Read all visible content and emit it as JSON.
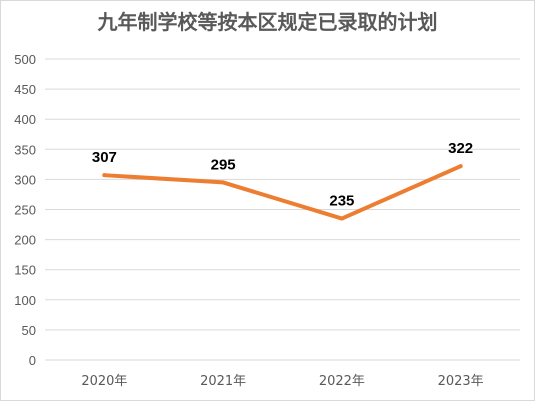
{
  "chart_data": {
    "type": "line",
    "title": "九年制学校等按本区规定已录取的计划",
    "categories": [
      "2020年",
      "2021年",
      "2022年",
      "2023年"
    ],
    "series": [
      {
        "values": [
          307,
          295,
          235,
          322
        ],
        "color": "#ED7D31"
      }
    ],
    "data_labels": [
      "307",
      "295",
      "235",
      "322"
    ],
    "ylim": [
      0,
      500
    ],
    "yticks": [
      "0",
      "50",
      "100",
      "150",
      "200",
      "250",
      "300",
      "350",
      "400",
      "450",
      "500"
    ],
    "xlabel": "",
    "ylabel": "",
    "grid": true,
    "gridline_color": "#d9d9d9",
    "legend": "none"
  }
}
